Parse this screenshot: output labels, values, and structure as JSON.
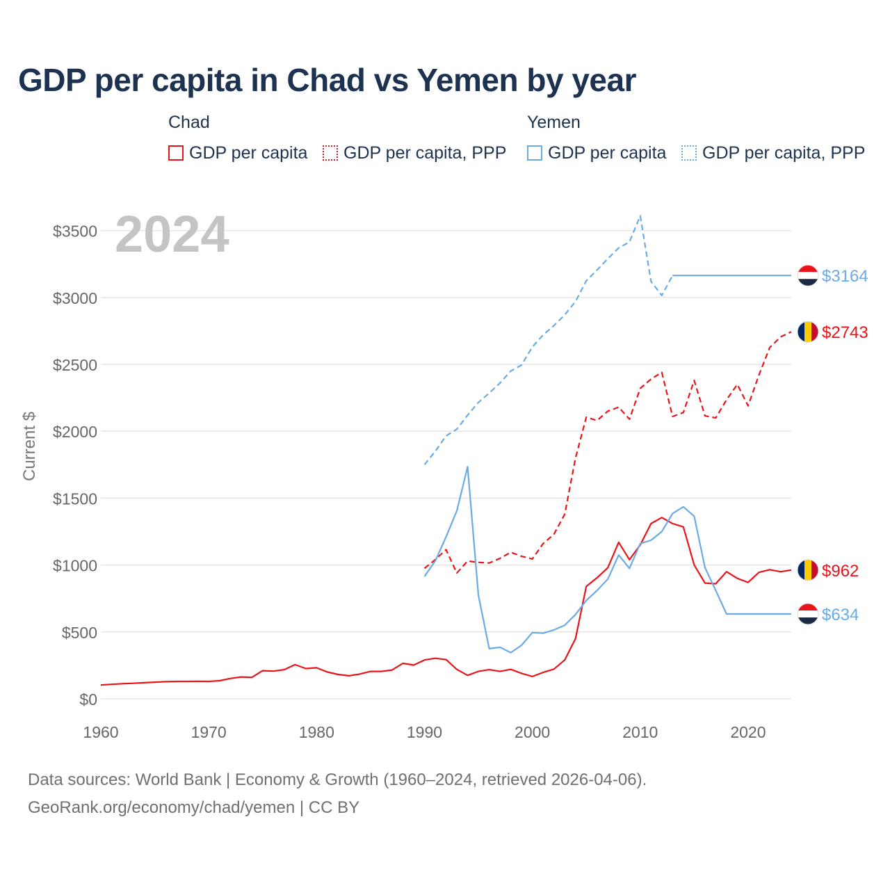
{
  "title": "GDP per capita in Chad vs Yemen by year",
  "legend": {
    "groups": [
      {
        "name": "Chad",
        "items": [
          "GDP per capita",
          "GDP per capita, PPP"
        ],
        "color": "#e8141a"
      },
      {
        "name": "Yemen",
        "items": [
          "GDP per capita",
          "GDP per capita, PPP"
        ],
        "color": "#6aabe6"
      }
    ]
  },
  "year_label": "2024",
  "source": {
    "line1": "Data sources: World Bank | Economy & Growth (1960–2024, retrieved 2026-04-06).",
    "line2": "GeoRank.org/economy/chad/yemen | CC BY"
  },
  "chart_data": {
    "type": "line",
    "title": "GDP per capita in Chad vs Yemen by year",
    "xlabel": "",
    "ylabel": "Current $",
    "xlim": [
      1960,
      2024
    ],
    "ylim": [
      0,
      3600
    ],
    "x_ticks": [
      1960,
      1970,
      1980,
      1990,
      2000,
      2010,
      2020
    ],
    "x_tick_labels": [
      "1960",
      "1970",
      "1980",
      "1990",
      "2000",
      "2010",
      "2020"
    ],
    "y_ticks": [
      0,
      500,
      1000,
      1500,
      2000,
      2500,
      3000,
      3500
    ],
    "y_tick_labels": [
      "$0",
      "$500",
      "$1000",
      "$1500",
      "$2000",
      "$2500",
      "$3000",
      "$3500"
    ],
    "grid": true,
    "end_labels": [
      {
        "series": "Yemen GDP per capita, PPP",
        "text": "$3164",
        "color": "#6aabe6",
        "value": 3164
      },
      {
        "series": "Chad GDP per capita, PPP",
        "text": "$2743",
        "color": "#e8141a",
        "value": 2743
      },
      {
        "series": "Chad GDP per capita",
        "text": "$962",
        "color": "#e8141a",
        "value": 962
      },
      {
        "series": "Yemen GDP per capita",
        "text": "$634",
        "color": "#6aabe6",
        "value": 634
      }
    ],
    "series": [
      {
        "name": "Chad GDP per capita",
        "color": "#e8141a",
        "dash": "solid",
        "x": [
          1960,
          1961,
          1962,
          1963,
          1964,
          1965,
          1966,
          1967,
          1968,
          1969,
          1970,
          1971,
          1972,
          1973,
          1974,
          1975,
          1976,
          1977,
          1978,
          1979,
          1980,
          1981,
          1982,
          1983,
          1984,
          1985,
          1986,
          1987,
          1988,
          1989,
          1990,
          1991,
          1992,
          1993,
          1994,
          1995,
          1996,
          1997,
          1998,
          1999,
          2000,
          2001,
          2002,
          2003,
          2004,
          2005,
          2006,
          2007,
          2008,
          2009,
          2010,
          2011,
          2012,
          2013,
          2014,
          2015,
          2016,
          2017,
          2018,
          2019,
          2020,
          2021,
          2022,
          2023,
          2024
        ],
        "values": [
          103,
          108,
          113,
          116,
          120,
          124,
          128,
          130,
          130,
          131,
          130,
          135,
          152,
          163,
          160,
          210,
          207,
          218,
          255,
          226,
          232,
          200,
          182,
          172,
          185,
          205,
          205,
          215,
          265,
          252,
          290,
          303,
          293,
          220,
          175,
          205,
          218,
          205,
          220,
          190,
          167,
          197,
          222,
          290,
          450,
          840,
          905,
          980,
          1170,
          1040,
          1150,
          1310,
          1355,
          1310,
          1285,
          1000,
          865,
          860,
          950,
          900,
          870,
          945,
          965,
          950,
          962
        ]
      },
      {
        "name": "Chad GDP per capita, PPP",
        "color": "#e8141a",
        "dash": "dashed",
        "x": [
          1990,
          1991,
          1992,
          1993,
          1994,
          1995,
          1996,
          1997,
          1998,
          1999,
          2000,
          2001,
          2002,
          2003,
          2004,
          2005,
          2006,
          2007,
          2008,
          2009,
          2010,
          2011,
          2012,
          2013,
          2014,
          2015,
          2016,
          2017,
          2018,
          2019,
          2020,
          2021,
          2022,
          2023,
          2024
        ],
        "values": [
          975,
          1040,
          1115,
          940,
          1030,
          1020,
          1015,
          1050,
          1095,
          1065,
          1045,
          1160,
          1230,
          1380,
          1800,
          2105,
          2080,
          2150,
          2180,
          2090,
          2320,
          2390,
          2440,
          2110,
          2140,
          2380,
          2115,
          2100,
          2235,
          2350,
          2190,
          2420,
          2625,
          2705,
          2743
        ]
      },
      {
        "name": "Yemen GDP per capita",
        "color": "#6aabe6",
        "dash": "solid",
        "x": [
          1990,
          1991,
          1992,
          1993,
          1994,
          1995,
          1996,
          1997,
          1998,
          1999,
          2000,
          2001,
          2002,
          2003,
          2004,
          2005,
          2006,
          2007,
          2008,
          2009,
          2010,
          2011,
          2012,
          2013,
          2014,
          2015,
          2016,
          2017,
          2018,
          2024
        ],
        "values": [
          915,
          1030,
          1210,
          1405,
          1735,
          775,
          375,
          385,
          345,
          400,
          495,
          490,
          515,
          550,
          630,
          735,
          810,
          895,
          1075,
          975,
          1160,
          1185,
          1250,
          1385,
          1435,
          1365,
          980,
          810,
          634,
          634
        ]
      },
      {
        "name": "Yemen GDP per capita, PPP",
        "color": "#6aabe6",
        "dash": "dashed",
        "x": [
          1990,
          1991,
          1992,
          1993,
          1994,
          1995,
          1996,
          1997,
          1998,
          1999,
          2000,
          2001,
          2002,
          2003,
          2004,
          2005,
          2006,
          2007,
          2008,
          2009,
          2010,
          2011,
          2012,
          2013
        ],
        "values": [
          1750,
          1850,
          1965,
          2015,
          2120,
          2215,
          2285,
          2360,
          2450,
          2495,
          2630,
          2720,
          2790,
          2870,
          2970,
          3125,
          3205,
          3290,
          3370,
          3415,
          3610,
          3120,
          3015,
          3164
        ]
      },
      {
        "name": "Yemen GDP per capita, PPP (held)",
        "color": "#6aabe6",
        "dash": "solid",
        "x": [
          2013,
          2024
        ],
        "values": [
          3164,
          3164
        ]
      }
    ]
  }
}
